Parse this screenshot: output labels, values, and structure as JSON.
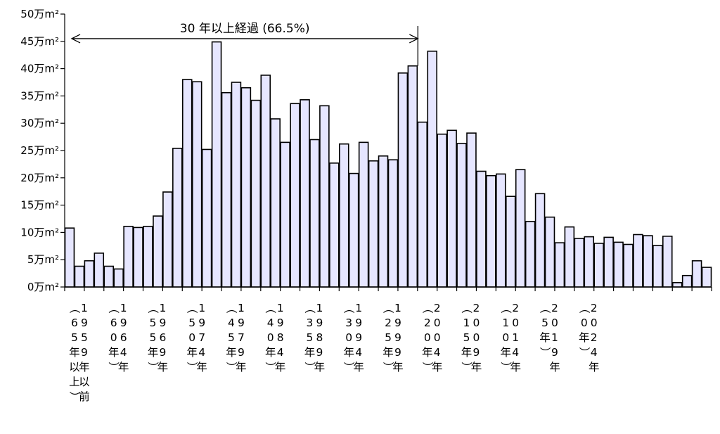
{
  "chart_data": {
    "type": "bar",
    "ylabel": "",
    "xlabel": "",
    "ylim": [
      0,
      50
    ],
    "y_unit": "万m²",
    "y_ticks": [
      0,
      5,
      10,
      15,
      20,
      25,
      30,
      35,
      40,
      45,
      50
    ],
    "grid": false,
    "legend": "none",
    "bar_color": "#e6e6ff",
    "bar_edge_color": "#000000",
    "values": [
      10.8,
      3.8,
      4.8,
      6.2,
      3.8,
      3.3,
      11.1,
      10.9,
      11.1,
      13.0,
      17.4,
      25.4,
      38.0,
      37.6,
      25.2,
      44.9,
      35.6,
      37.5,
      36.5,
      34.2,
      38.8,
      30.8,
      26.5,
      33.6,
      34.3,
      27.0,
      33.2,
      22.7,
      26.2,
      20.8,
      26.5,
      23.1,
      24.0,
      23.3,
      39.2,
      40.5,
      30.2,
      43.2,
      28.0,
      28.7,
      26.3,
      28.2,
      21.2,
      20.4,
      20.7,
      16.6,
      21.5,
      12.0,
      17.1,
      12.8,
      8.1,
      11.0,
      8.9,
      9.2,
      8.0,
      9.1,
      8.2,
      7.8,
      9.6,
      9.4,
      7.6,
      9.3,
      0.8,
      2.1,
      4.8,
      3.6
    ],
    "x_labels": [
      {
        "index": 0,
        "lines": [
          "（",
          "6",
          "5",
          "年",
          "以",
          "上",
          "）"
        ]
      },
      {
        "index": 1,
        "lines": [
          "1",
          "9",
          "5",
          "9",
          "年",
          "以",
          "前"
        ]
      },
      {
        "index": 4,
        "lines": [
          "（",
          "6",
          "0",
          "年",
          "）"
        ]
      },
      {
        "index": 5,
        "lines": [
          "1",
          "9",
          "6",
          "4",
          "年"
        ]
      },
      {
        "index": 8,
        "lines": [
          "（",
          "5",
          "5",
          "年",
          "）"
        ]
      },
      {
        "index": 9,
        "lines": [
          "1",
          "9",
          "6",
          "9",
          "年"
        ]
      },
      {
        "index": 12,
        "lines": [
          "（",
          "5",
          "0",
          "年",
          "）"
        ]
      },
      {
        "index": 13,
        "lines": [
          "1",
          "9",
          "7",
          "4",
          "年"
        ]
      },
      {
        "index": 16,
        "lines": [
          "（",
          "4",
          "5",
          "年",
          "）"
        ]
      },
      {
        "index": 17,
        "lines": [
          "1",
          "9",
          "7",
          "9",
          "年"
        ]
      },
      {
        "index": 20,
        "lines": [
          "（",
          "4",
          "0",
          "年",
          "）"
        ]
      },
      {
        "index": 21,
        "lines": [
          "1",
          "9",
          "8",
          "4",
          "年"
        ]
      },
      {
        "index": 24,
        "lines": [
          "（",
          "3",
          "5",
          "年",
          "）"
        ]
      },
      {
        "index": 25,
        "lines": [
          "1",
          "9",
          "8",
          "9",
          "年"
        ]
      },
      {
        "index": 28,
        "lines": [
          "（",
          "3",
          "0",
          "年",
          "）"
        ]
      },
      {
        "index": 29,
        "lines": [
          "1",
          "9",
          "9",
          "4",
          "年"
        ]
      },
      {
        "index": 32,
        "lines": [
          "（",
          "2",
          "5",
          "年",
          "）"
        ]
      },
      {
        "index": 33,
        "lines": [
          "1",
          "9",
          "9",
          "9",
          "年"
        ]
      },
      {
        "index": 36,
        "lines": [
          "（",
          "2",
          "0",
          "年",
          "）"
        ]
      },
      {
        "index": 37,
        "lines": [
          "2",
          "0",
          "0",
          "4",
          "年"
        ]
      },
      {
        "index": 40,
        "lines": [
          "（",
          "1",
          "5",
          "年",
          "）"
        ]
      },
      {
        "index": 41,
        "lines": [
          "2",
          "0",
          "0",
          "9",
          "年"
        ]
      },
      {
        "index": 44,
        "lines": [
          "（",
          "1",
          "0",
          "年",
          "）"
        ]
      },
      {
        "index": 45,
        "lines": [
          "2",
          "0",
          "1",
          "4",
          "年"
        ]
      },
      {
        "index": 48,
        "lines": [
          "（",
          "5",
          "年",
          "）"
        ]
      },
      {
        "index": 49,
        "lines": [
          "2",
          "0",
          "1",
          "9",
          "年"
        ]
      },
      {
        "index": 52,
        "lines": [
          "（",
          "0",
          "年",
          "）"
        ]
      },
      {
        "index": 53,
        "lines": [
          "2",
          "0",
          "2",
          "4",
          "年"
        ]
      }
    ],
    "annotation": {
      "text": "30 年以上経過 (66.5%)",
      "from_bar": 0,
      "to_bar": 35,
      "y_value": 45.5
    }
  }
}
